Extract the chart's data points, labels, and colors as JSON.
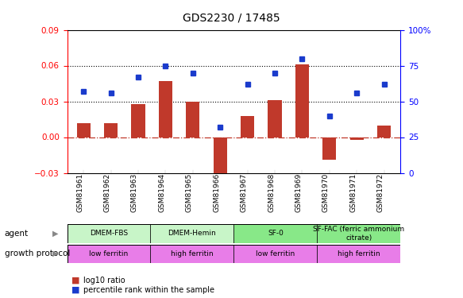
{
  "title": "GDS2230 / 17485",
  "samples": [
    "GSM81961",
    "GSM81962",
    "GSM81963",
    "GSM81964",
    "GSM81965",
    "GSM81966",
    "GSM81967",
    "GSM81968",
    "GSM81969",
    "GSM81970",
    "GSM81971",
    "GSM81972"
  ],
  "log10_ratio": [
    0.012,
    0.012,
    0.028,
    0.047,
    0.03,
    -0.033,
    0.018,
    0.031,
    0.061,
    -0.019,
    -0.002,
    0.01
  ],
  "percentile_rank": [
    57,
    56,
    67,
    75,
    70,
    32,
    62,
    70,
    80,
    40,
    56,
    62
  ],
  "ylim_left": [
    -0.03,
    0.09
  ],
  "ylim_right": [
    0,
    100
  ],
  "yticks_left": [
    -0.03,
    0,
    0.03,
    0.06,
    0.09
  ],
  "yticks_right": [
    0,
    25,
    50,
    75,
    100
  ],
  "hlines": [
    0.03,
    0.06
  ],
  "bar_color": "#C0392B",
  "dot_color": "#1A3BCC",
  "zero_line_color": "#C0392B",
  "agent_groups": [
    {
      "label": "DMEM-FBS",
      "start": 0,
      "end": 3,
      "color": "#c8f5c8"
    },
    {
      "label": "DMEM-Hemin",
      "start": 3,
      "end": 6,
      "color": "#c8f5c8"
    },
    {
      "label": "SF-0",
      "start": 6,
      "end": 9,
      "color": "#88e888"
    },
    {
      "label": "SF-FAC (ferric ammonium\ncitrate)",
      "start": 9,
      "end": 12,
      "color": "#88e888"
    }
  ],
  "growth_groups": [
    {
      "label": "low ferritin",
      "start": 0,
      "end": 3,
      "color": "#e87de8"
    },
    {
      "label": "high ferritin",
      "start": 3,
      "end": 6,
      "color": "#e87de8"
    },
    {
      "label": "low ferritin",
      "start": 6,
      "end": 9,
      "color": "#e87de8"
    },
    {
      "label": "high ferritin",
      "start": 9,
      "end": 12,
      "color": "#e87de8"
    }
  ],
  "legend_bar_label": "log10 ratio",
  "legend_dot_label": "percentile rank within the sample",
  "title_fontsize": 10,
  "sample_label_fontsize": 6.5,
  "row_label_fontsize": 7.5,
  "cell_fontsize": 6.5,
  "legend_fontsize": 7
}
